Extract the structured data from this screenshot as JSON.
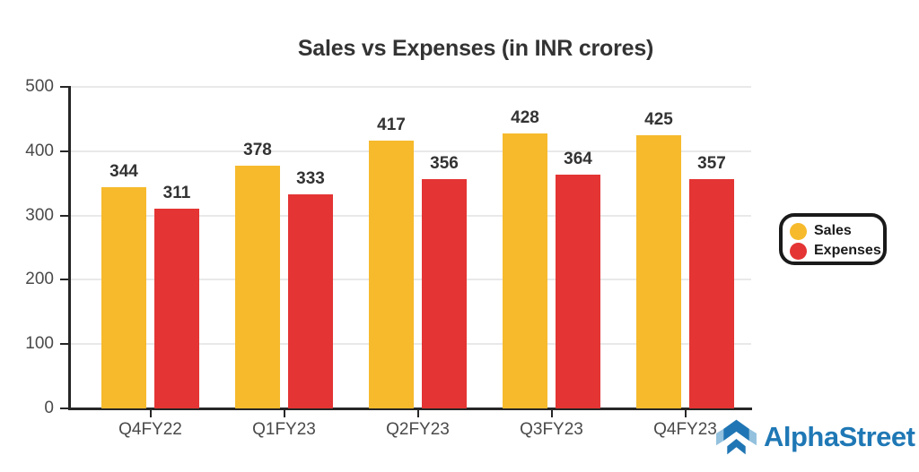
{
  "chart_data": {
    "type": "bar",
    "title": "Sales vs Expenses (in INR crores)",
    "categories": [
      "Q4FY22",
      "Q1FY23",
      "Q2FY23",
      "Q3FY23",
      "Q4FY23"
    ],
    "series": [
      {
        "name": "Sales",
        "color": "#F6BA2C",
        "values": [
          344,
          378,
          417,
          428,
          425
        ]
      },
      {
        "name": "Expenses",
        "color": "#E43434",
        "values": [
          311,
          333,
          356,
          364,
          357
        ]
      }
    ],
    "ylim": [
      0,
      500
    ],
    "yticks": [
      0,
      100,
      200,
      300,
      400,
      500
    ],
    "grid": true,
    "value_labels": true,
    "legend_position": "center-right"
  },
  "branding": {
    "name": "AlphaStreet",
    "text_color": "#1F78B5",
    "icon_dark": "#2076B4",
    "icon_light": "#93C1DE"
  },
  "colors": {
    "title": "#333333",
    "tick_label": "#4a4a4a",
    "gridline": "#E9E9E9",
    "axis": "#262626",
    "background": "#FFFFFF",
    "legend_border": "#1A1A1A"
  }
}
